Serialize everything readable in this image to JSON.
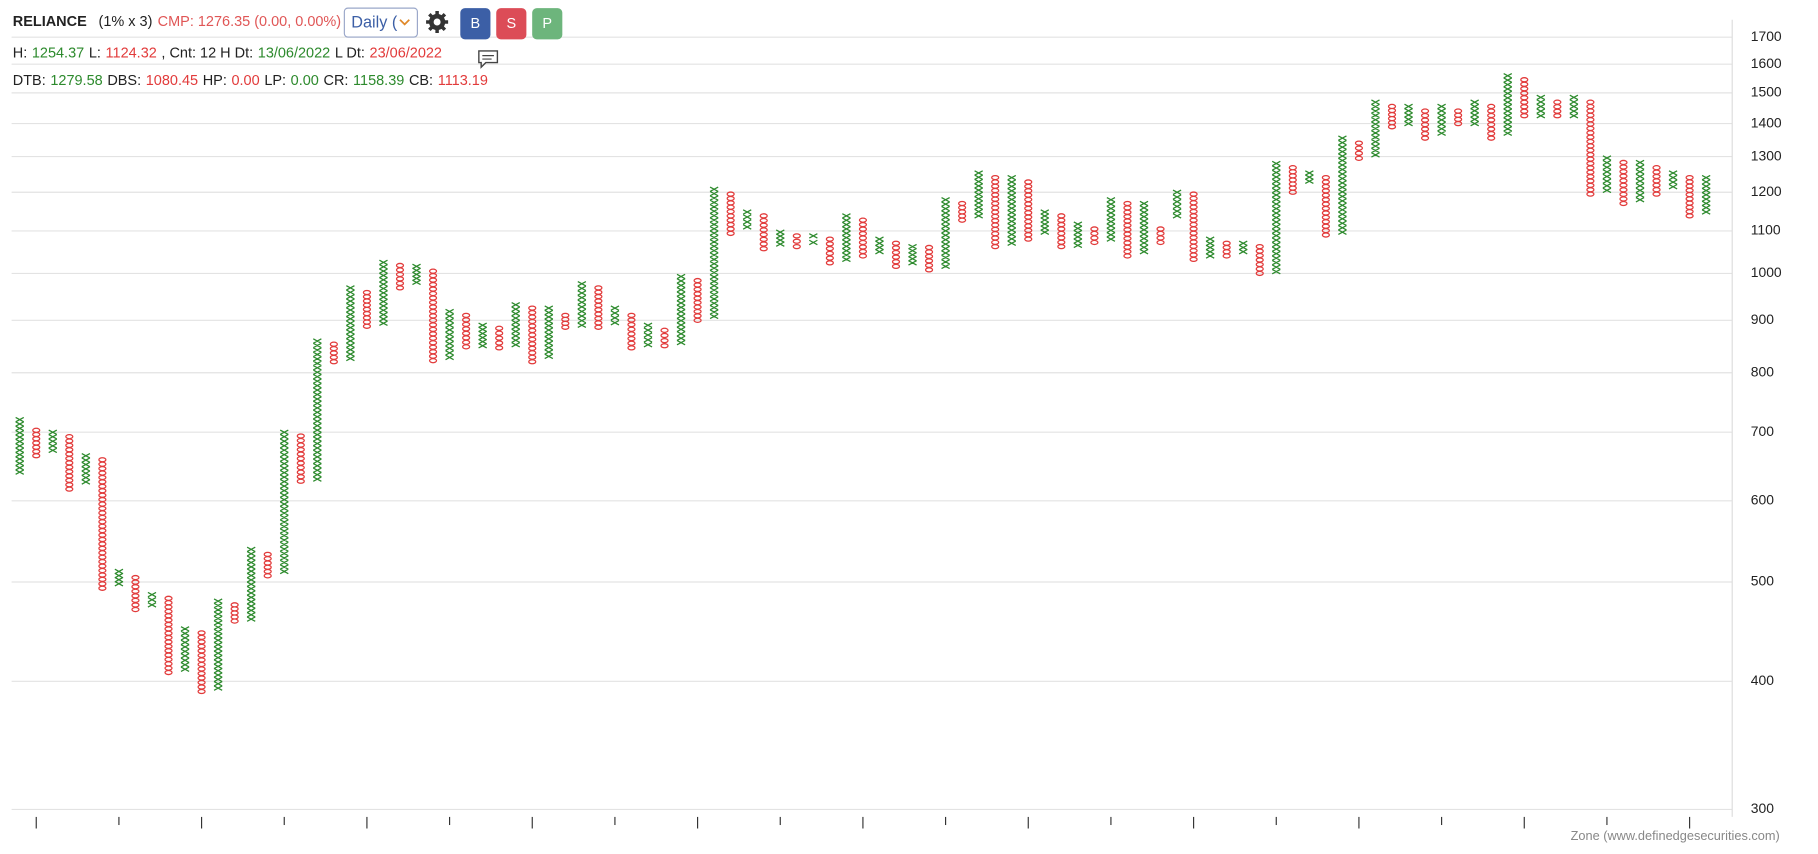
{
  "header": {
    "symbol": "RELIANCE",
    "params": "(1% x 3)",
    "cmp": "CMP: 1276.35 (0.00, 0.00%)",
    "interval": "Daily (",
    "buttons": [
      "B",
      "S",
      "P"
    ],
    "button_colors": [
      "#3c5fa6",
      "#dc4c57",
      "#6db57c"
    ]
  },
  "stats": [
    [
      {
        "label": "H:",
        "value": "1254.37",
        "color": "#2d8a2d"
      },
      {
        "label": "L:",
        "value": "1124.32",
        "color": "#e23b3b"
      },
      {
        "label": ", Cnt: 12 H Dt:",
        "value": "13/06/2022",
        "color": "#2d8a2d"
      },
      {
        "label": "L Dt:",
        "value": "23/06/2022",
        "color": "#e23b3b"
      }
    ],
    [
      {
        "label": "DTB:",
        "value": "1279.58",
        "color": "#2d8a2d"
      },
      {
        "label": "DBS:",
        "value": "1080.45",
        "color": "#e23b3b"
      },
      {
        "label": "HP:",
        "value": "0.00",
        "color": "#e23b3b"
      },
      {
        "label": "LP:",
        "value": "0.00",
        "color": "#2d8a2d"
      },
      {
        "label": "CR:",
        "value": "1158.39",
        "color": "#2d8a2d"
      },
      {
        "label": "CB:",
        "value": "1113.19",
        "color": "#e23b3b"
      }
    ]
  ],
  "chart_data": {
    "type": "pnf",
    "log": true,
    "grid": true,
    "x_color": "#2d8a2d",
    "o_color": "#e23b3b",
    "ylim": [
      295,
      1768
    ],
    "yticks": [
      300,
      400,
      500,
      600,
      700,
      800,
      900,
      1000,
      1100,
      1200,
      1300,
      1400,
      1500,
      1600,
      1700
    ],
    "columns": [
      {
        "type": "X",
        "low": 640,
        "high": 720
      },
      {
        "type": "O",
        "low": 664,
        "high": 703
      },
      {
        "type": "X",
        "low": 672,
        "high": 700
      },
      {
        "type": "O",
        "low": 616,
        "high": 693
      },
      {
        "type": "X",
        "low": 626,
        "high": 664
      },
      {
        "type": "O",
        "low": 493,
        "high": 658
      },
      {
        "type": "X",
        "low": 498,
        "high": 512
      },
      {
        "type": "O",
        "low": 470,
        "high": 505
      },
      {
        "type": "X",
        "low": 475,
        "high": 486
      },
      {
        "type": "O",
        "low": 408,
        "high": 482
      },
      {
        "type": "X",
        "low": 411,
        "high": 450
      },
      {
        "type": "O",
        "low": 391,
        "high": 446
      },
      {
        "type": "X",
        "low": 394,
        "high": 479
      },
      {
        "type": "O",
        "low": 458,
        "high": 475
      },
      {
        "type": "X",
        "low": 460,
        "high": 538
      },
      {
        "type": "O",
        "low": 507,
        "high": 532
      },
      {
        "type": "X",
        "low": 512,
        "high": 700
      },
      {
        "type": "O",
        "low": 627,
        "high": 694
      },
      {
        "type": "X",
        "low": 630,
        "high": 859
      },
      {
        "type": "O",
        "low": 820,
        "high": 853
      },
      {
        "type": "X",
        "low": 826,
        "high": 968
      },
      {
        "type": "O",
        "low": 888,
        "high": 958
      },
      {
        "type": "X",
        "low": 894,
        "high": 1025
      },
      {
        "type": "O",
        "low": 968,
        "high": 1018
      },
      {
        "type": "X",
        "low": 980,
        "high": 1016
      },
      {
        "type": "O",
        "low": 822,
        "high": 1005
      },
      {
        "type": "X",
        "low": 828,
        "high": 918
      },
      {
        "type": "O",
        "low": 848,
        "high": 910
      },
      {
        "type": "X",
        "low": 850,
        "high": 890
      },
      {
        "type": "O",
        "low": 846,
        "high": 884
      },
      {
        "type": "X",
        "low": 852,
        "high": 932
      },
      {
        "type": "O",
        "low": 820,
        "high": 925
      },
      {
        "type": "X",
        "low": 830,
        "high": 925
      },
      {
        "type": "O",
        "low": 886,
        "high": 910
      },
      {
        "type": "X",
        "low": 890,
        "high": 977
      },
      {
        "type": "O",
        "low": 886,
        "high": 968
      },
      {
        "type": "X",
        "low": 895,
        "high": 925
      },
      {
        "type": "O",
        "low": 846,
        "high": 910
      },
      {
        "type": "X",
        "low": 852,
        "high": 890
      },
      {
        "type": "O",
        "low": 850,
        "high": 880
      },
      {
        "type": "X",
        "low": 856,
        "high": 993
      },
      {
        "type": "O",
        "low": 900,
        "high": 984
      },
      {
        "type": "X",
        "low": 908,
        "high": 1208
      },
      {
        "type": "O",
        "low": 1094,
        "high": 1195
      },
      {
        "type": "X",
        "low": 1110,
        "high": 1148
      },
      {
        "type": "O",
        "low": 1057,
        "high": 1138
      },
      {
        "type": "X",
        "low": 1068,
        "high": 1097
      },
      {
        "type": "O",
        "low": 1062,
        "high": 1088
      },
      {
        "type": "X",
        "low": 1072,
        "high": 1088
      },
      {
        "type": "O",
        "low": 1024,
        "high": 1080
      },
      {
        "type": "X",
        "low": 1032,
        "high": 1138
      },
      {
        "type": "O",
        "low": 1040,
        "high": 1127
      },
      {
        "type": "X",
        "low": 1050,
        "high": 1080
      },
      {
        "type": "O",
        "low": 1016,
        "high": 1070
      },
      {
        "type": "X",
        "low": 1024,
        "high": 1062
      },
      {
        "type": "O",
        "low": 1008,
        "high": 1060
      },
      {
        "type": "X",
        "low": 1016,
        "high": 1180
      },
      {
        "type": "O",
        "low": 1127,
        "high": 1170
      },
      {
        "type": "X",
        "low": 1138,
        "high": 1253
      },
      {
        "type": "O",
        "low": 1062,
        "high": 1240
      },
      {
        "type": "X",
        "low": 1070,
        "high": 1240
      },
      {
        "type": "O",
        "low": 1080,
        "high": 1228
      },
      {
        "type": "X",
        "low": 1097,
        "high": 1148
      },
      {
        "type": "O",
        "low": 1062,
        "high": 1138
      },
      {
        "type": "X",
        "low": 1065,
        "high": 1117
      },
      {
        "type": "O",
        "low": 1072,
        "high": 1105
      },
      {
        "type": "X",
        "low": 1080,
        "high": 1180
      },
      {
        "type": "O",
        "low": 1040,
        "high": 1170
      },
      {
        "type": "X",
        "low": 1050,
        "high": 1170
      },
      {
        "type": "O",
        "low": 1072,
        "high": 1105
      },
      {
        "type": "X",
        "low": 1138,
        "high": 1200
      },
      {
        "type": "O",
        "low": 1032,
        "high": 1195
      },
      {
        "type": "X",
        "low": 1040,
        "high": 1080
      },
      {
        "type": "O",
        "low": 1040,
        "high": 1070
      },
      {
        "type": "X",
        "low": 1050,
        "high": 1070
      },
      {
        "type": "O",
        "low": 1000,
        "high": 1062
      },
      {
        "type": "X",
        "low": 1004,
        "high": 1280
      },
      {
        "type": "O",
        "low": 1200,
        "high": 1268
      },
      {
        "type": "X",
        "low": 1230,
        "high": 1253
      },
      {
        "type": "O",
        "low": 1090,
        "high": 1240
      },
      {
        "type": "X",
        "low": 1097,
        "high": 1355
      },
      {
        "type": "O",
        "low": 1295,
        "high": 1340
      },
      {
        "type": "X",
        "low": 1305,
        "high": 1469
      },
      {
        "type": "O",
        "low": 1390,
        "high": 1455
      },
      {
        "type": "X",
        "low": 1400,
        "high": 1455
      },
      {
        "type": "O",
        "low": 1355,
        "high": 1440
      },
      {
        "type": "X",
        "low": 1370,
        "high": 1455
      },
      {
        "type": "O",
        "low": 1400,
        "high": 1440
      },
      {
        "type": "X",
        "low": 1400,
        "high": 1469
      },
      {
        "type": "O",
        "low": 1355,
        "high": 1455
      },
      {
        "type": "X",
        "low": 1370,
        "high": 1559
      },
      {
        "type": "O",
        "low": 1425,
        "high": 1545
      },
      {
        "type": "X",
        "low": 1425,
        "high": 1485
      },
      {
        "type": "O",
        "low": 1425,
        "high": 1469
      },
      {
        "type": "X",
        "low": 1425,
        "high": 1485
      },
      {
        "type": "O",
        "low": 1195,
        "high": 1469
      },
      {
        "type": "X",
        "low": 1205,
        "high": 1296
      },
      {
        "type": "O",
        "low": 1170,
        "high": 1283
      },
      {
        "type": "X",
        "low": 1180,
        "high": 1283
      },
      {
        "type": "O",
        "low": 1195,
        "high": 1268
      },
      {
        "type": "X",
        "low": 1215,
        "high": 1253
      },
      {
        "type": "O",
        "low": 1138,
        "high": 1240
      },
      {
        "type": "X",
        "low": 1148,
        "high": 1240
      }
    ]
  },
  "footer": "Zone (www.definedgesecurities.com)"
}
